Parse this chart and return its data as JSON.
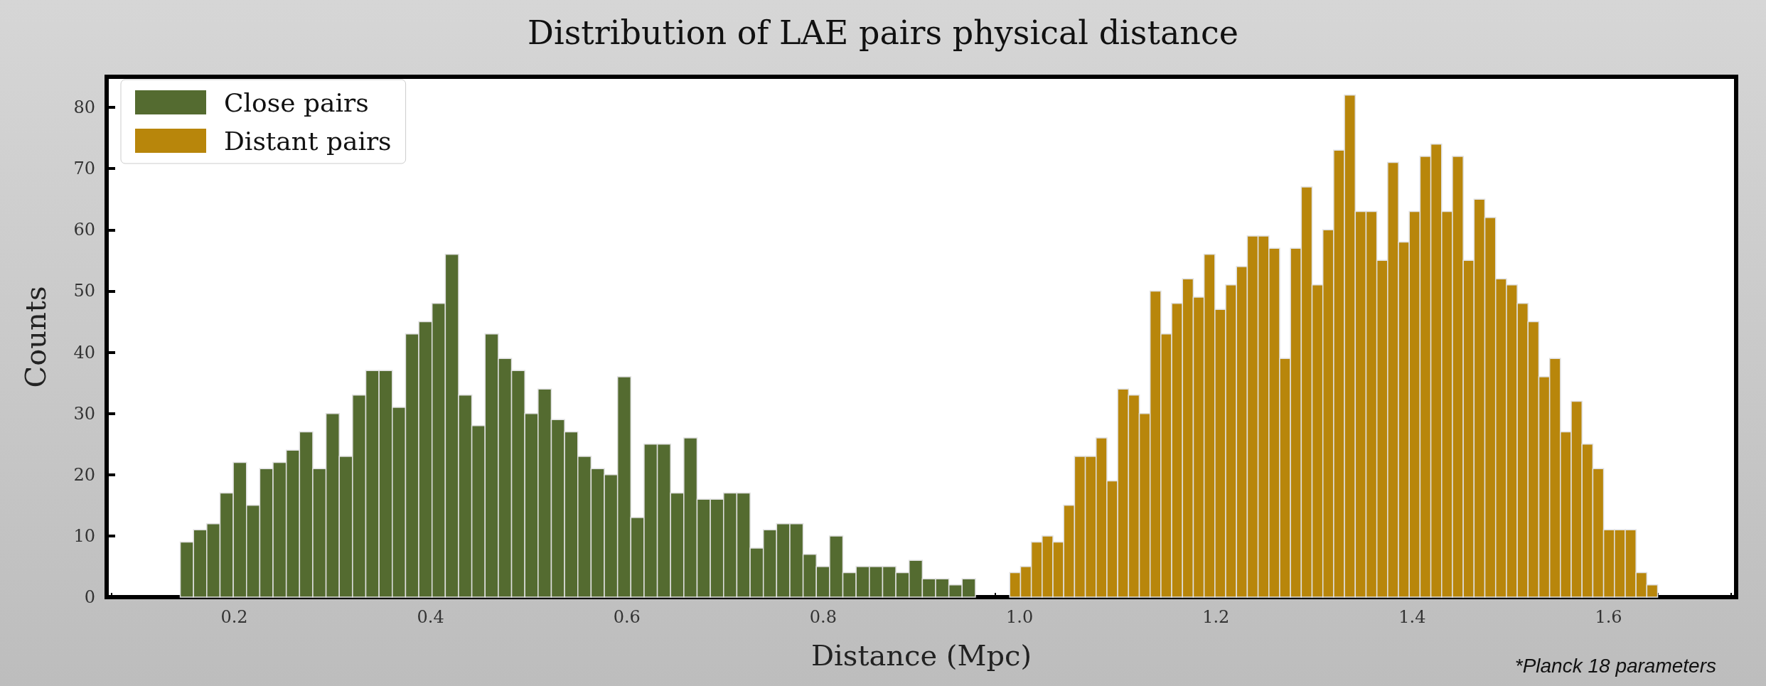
{
  "chart_data": {
    "type": "histogram",
    "title": "Distribution of LAE pairs physical distance",
    "xlabel": "Distance (Mpc)",
    "ylabel": "Counts",
    "annotations": [
      "*Planck 18 parameters"
    ],
    "bins": [
      0.145,
      0.1585,
      0.172,
      0.1855,
      0.199,
      0.2125,
      0.226,
      0.2395,
      0.253,
      0.2665,
      0.28,
      0.2935,
      0.307,
      0.3205,
      0.334,
      0.3475,
      0.361,
      0.3745,
      0.388,
      0.4015,
      0.415,
      0.4285,
      0.442,
      0.4555,
      0.469,
      0.4825,
      0.496,
      0.5095,
      0.523,
      0.5365,
      0.55,
      0.5635,
      0.577,
      0.5905,
      0.604,
      0.6175,
      0.631,
      0.6445,
      0.658,
      0.6715,
      0.685,
      0.6985,
      0.712,
      0.7255,
      0.739,
      0.7525,
      0.766,
      0.7795,
      0.793,
      0.8065,
      0.82,
      0.8335,
      0.847,
      0.8605,
      0.874,
      0.8875,
      0.901,
      0.9145,
      0.928,
      0.9415,
      0.955,
      0.99,
      1.001,
      1.012,
      1.023,
      1.034,
      1.045,
      1.056,
      1.067,
      1.078,
      1.089,
      1.1,
      1.111,
      1.122,
      1.133,
      1.144,
      1.155,
      1.166,
      1.177,
      1.188,
      1.199,
      1.21,
      1.221,
      1.232,
      1.243,
      1.254,
      1.265,
      1.276,
      1.287,
      1.298,
      1.309,
      1.32,
      1.331,
      1.342,
      1.353,
      1.364,
      1.375,
      1.386,
      1.397,
      1.408,
      1.419,
      1.43,
      1.441,
      1.452,
      1.463,
      1.474,
      1.485,
      1.496,
      1.507,
      1.518,
      1.529,
      1.54,
      1.551,
      1.562,
      1.573,
      1.584,
      1.595,
      1.606,
      1.617,
      1.628,
      1.639,
      1.65
    ],
    "series": [
      {
        "name": "Close pairs",
        "color": "#546b30",
        "values": [
          9,
          11,
          12,
          17,
          22,
          15,
          21,
          22,
          24,
          27,
          21,
          30,
          23,
          33,
          37,
          37,
          31,
          43,
          45,
          48,
          56,
          33,
          28,
          43,
          39,
          37,
          30,
          34,
          29,
          27,
          23,
          21,
          20,
          36,
          13,
          25,
          25,
          17,
          26,
          16,
          16,
          17,
          17,
          8,
          11,
          12,
          12,
          7,
          5,
          10,
          4,
          5,
          5,
          5,
          4,
          6,
          3,
          3,
          2,
          3,
          null,
          null,
          null,
          null,
          null,
          null,
          null,
          null,
          null,
          null,
          null,
          null,
          null,
          null,
          null,
          null,
          null,
          null,
          null,
          null,
          null,
          null,
          null,
          null,
          null,
          null,
          null,
          null,
          null,
          null,
          null,
          null,
          null,
          null,
          null,
          null,
          null,
          null,
          null,
          null,
          null,
          null,
          null,
          null,
          null,
          null,
          null,
          null,
          null,
          null,
          null,
          null,
          null,
          null,
          null,
          null,
          null,
          null,
          null,
          null,
          null
        ]
      },
      {
        "name": "Distant pairs",
        "color": "#b8860b",
        "values": [
          null,
          null,
          null,
          null,
          null,
          null,
          null,
          null,
          null,
          null,
          null,
          null,
          null,
          null,
          null,
          null,
          null,
          null,
          null,
          null,
          null,
          null,
          null,
          null,
          null,
          null,
          null,
          null,
          null,
          null,
          null,
          null,
          null,
          null,
          null,
          null,
          null,
          null,
          null,
          null,
          null,
          null,
          null,
          null,
          null,
          null,
          null,
          null,
          null,
          null,
          null,
          null,
          null,
          null,
          null,
          null,
          null,
          null,
          null,
          null,
          null,
          4,
          5,
          9,
          10,
          9,
          15,
          23,
          23,
          26,
          19,
          34,
          33,
          30,
          50,
          43,
          48,
          52,
          49,
          56,
          47,
          51,
          54,
          59,
          59,
          57,
          39,
          57,
          67,
          51,
          60,
          73,
          82,
          63,
          63,
          55,
          71,
          58,
          63,
          72,
          74,
          63,
          72,
          55,
          65,
          62,
          52,
          51,
          48,
          45,
          36,
          39,
          27,
          32,
          25,
          21,
          11,
          11,
          11,
          4,
          2
        ]
      }
    ],
    "xlim": [
      0.07,
      1.73
    ],
    "xticks": [
      0.2,
      0.4,
      0.6,
      0.8,
      {
        "value": 1,
        "label": "1.0"
      },
      1.2,
      1.4,
      1.6
    ],
    "ylim": [
      0,
      85
    ],
    "yticks": [
      0,
      10,
      20,
      30,
      40,
      50,
      60,
      70,
      80
    ],
    "legend": "top left"
  }
}
